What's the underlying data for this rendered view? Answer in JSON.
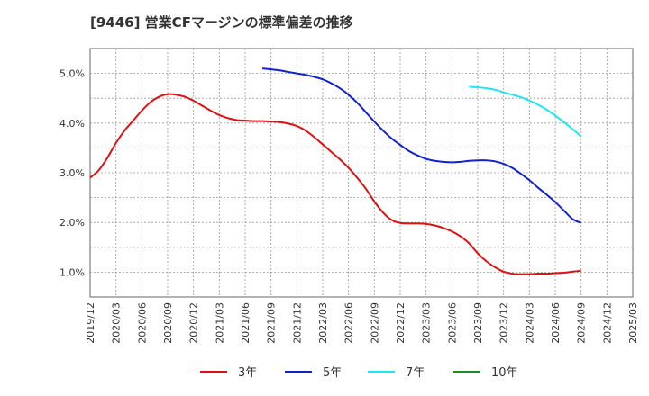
{
  "chart_data": {
    "type": "line",
    "title": "[9446]  営業CFマージンの標準偏差の推移",
    "xlabel": "",
    "ylabel": "",
    "x_ticks": [
      "2019/12",
      "2020/03",
      "2020/06",
      "2020/09",
      "2020/12",
      "2021/03",
      "2021/06",
      "2021/09",
      "2021/12",
      "2022/03",
      "2022/06",
      "2022/09",
      "2022/12",
      "2023/03",
      "2023/06",
      "2023/09",
      "2023/12",
      "2024/03",
      "2024/06",
      "2024/09",
      "2024/12",
      "2025/03"
    ],
    "y_ticks": [
      "1.0%",
      "2.0%",
      "3.0%",
      "4.0%",
      "5.0%"
    ],
    "ylim": [
      0.5,
      5.5
    ],
    "grid": true,
    "legend_position": "bottom",
    "series": [
      {
        "name": "3年",
        "color": "#dd1111",
        "points": [
          [
            "2019/12",
            2.9
          ],
          [
            "2020/01",
            3.05
          ],
          [
            "2020/02",
            3.3
          ],
          [
            "2020/03",
            3.6
          ],
          [
            "2020/04",
            3.85
          ],
          [
            "2020/05",
            4.05
          ],
          [
            "2020/06",
            4.25
          ],
          [
            "2020/07",
            4.42
          ],
          [
            "2020/08",
            4.53
          ],
          [
            "2020/09",
            4.58
          ],
          [
            "2020/10",
            4.57
          ],
          [
            "2020/11",
            4.53
          ],
          [
            "2020/12",
            4.45
          ],
          [
            "2021/01",
            4.35
          ],
          [
            "2021/02",
            4.25
          ],
          [
            "2021/03",
            4.16
          ],
          [
            "2021/04",
            4.1
          ],
          [
            "2021/05",
            4.06
          ],
          [
            "2021/06",
            4.05
          ],
          [
            "2021/07",
            4.04
          ],
          [
            "2021/08",
            4.04
          ],
          [
            "2021/09",
            4.03
          ],
          [
            "2021/10",
            4.02
          ],
          [
            "2021/11",
            3.99
          ],
          [
            "2021/12",
            3.94
          ],
          [
            "2022/01",
            3.85
          ],
          [
            "2022/02",
            3.72
          ],
          [
            "2022/03",
            3.57
          ],
          [
            "2022/04",
            3.42
          ],
          [
            "2022/05",
            3.27
          ],
          [
            "2022/06",
            3.1
          ],
          [
            "2022/07",
            2.9
          ],
          [
            "2022/08",
            2.68
          ],
          [
            "2022/09",
            2.42
          ],
          [
            "2022/10",
            2.2
          ],
          [
            "2022/11",
            2.05
          ],
          [
            "2022/12",
            1.99
          ],
          [
            "2023/01",
            1.98
          ],
          [
            "2023/02",
            1.98
          ],
          [
            "2023/03",
            1.97
          ],
          [
            "2023/04",
            1.94
          ],
          [
            "2023/05",
            1.89
          ],
          [
            "2023/06",
            1.82
          ],
          [
            "2023/07",
            1.72
          ],
          [
            "2023/08",
            1.58
          ],
          [
            "2023/09",
            1.38
          ],
          [
            "2023/10",
            1.22
          ],
          [
            "2023/11",
            1.1
          ],
          [
            "2023/12",
            1.01
          ],
          [
            "2024/01",
            0.97
          ],
          [
            "2024/02",
            0.96
          ],
          [
            "2024/03",
            0.96
          ],
          [
            "2024/04",
            0.97
          ],
          [
            "2024/05",
            0.97
          ],
          [
            "2024/06",
            0.98
          ],
          [
            "2024/07",
            0.99
          ],
          [
            "2024/08",
            1.01
          ],
          [
            "2024/09",
            1.03
          ]
        ]
      },
      {
        "name": "5年",
        "color": "#1122cc",
        "points": [
          [
            "2021/08",
            5.1
          ],
          [
            "2021/09",
            5.08
          ],
          [
            "2021/10",
            5.06
          ],
          [
            "2021/11",
            5.03
          ],
          [
            "2021/12",
            5.0
          ],
          [
            "2022/01",
            4.97
          ],
          [
            "2022/02",
            4.93
          ],
          [
            "2022/03",
            4.88
          ],
          [
            "2022/04",
            4.8
          ],
          [
            "2022/05",
            4.7
          ],
          [
            "2022/06",
            4.57
          ],
          [
            "2022/07",
            4.41
          ],
          [
            "2022/08",
            4.22
          ],
          [
            "2022/09",
            4.03
          ],
          [
            "2022/10",
            3.85
          ],
          [
            "2022/11",
            3.69
          ],
          [
            "2022/12",
            3.56
          ],
          [
            "2023/01",
            3.44
          ],
          [
            "2023/02",
            3.35
          ],
          [
            "2023/03",
            3.28
          ],
          [
            "2023/04",
            3.24
          ],
          [
            "2023/05",
            3.22
          ],
          [
            "2023/06",
            3.21
          ],
          [
            "2023/07",
            3.22
          ],
          [
            "2023/08",
            3.24
          ],
          [
            "2023/09",
            3.25
          ],
          [
            "2023/10",
            3.25
          ],
          [
            "2023/11",
            3.23
          ],
          [
            "2023/12",
            3.18
          ],
          [
            "2024/01",
            3.1
          ],
          [
            "2024/02",
            2.98
          ],
          [
            "2024/03",
            2.85
          ],
          [
            "2024/04",
            2.7
          ],
          [
            "2024/05",
            2.56
          ],
          [
            "2024/06",
            2.41
          ],
          [
            "2024/07",
            2.24
          ],
          [
            "2024/08",
            2.07
          ],
          [
            "2024/09",
            1.99
          ]
        ]
      },
      {
        "name": "7年",
        "color": "#22e5f0",
        "points": [
          [
            "2023/08",
            4.73
          ],
          [
            "2023/09",
            4.72
          ],
          [
            "2023/10",
            4.7
          ],
          [
            "2023/11",
            4.67
          ],
          [
            "2023/12",
            4.62
          ],
          [
            "2024/01",
            4.57
          ],
          [
            "2024/02",
            4.52
          ],
          [
            "2024/03",
            4.45
          ],
          [
            "2024/04",
            4.37
          ],
          [
            "2024/05",
            4.27
          ],
          [
            "2024/06",
            4.15
          ],
          [
            "2024/07",
            4.02
          ],
          [
            "2024/08",
            3.88
          ],
          [
            "2024/09",
            3.73
          ]
        ]
      },
      {
        "name": "10年",
        "color": "#228b22",
        "points": []
      }
    ]
  }
}
